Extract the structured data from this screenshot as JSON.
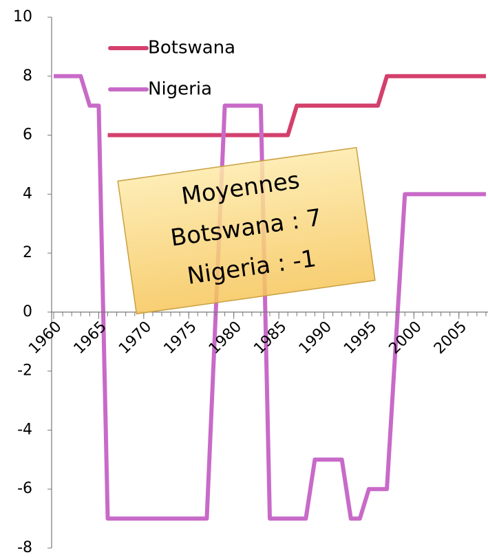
{
  "chart_data": {
    "type": "line",
    "x": [
      1960,
      1961,
      1962,
      1963,
      1964,
      1965,
      1966,
      1967,
      1968,
      1969,
      1970,
      1971,
      1972,
      1973,
      1974,
      1975,
      1976,
      1977,
      1978,
      1979,
      1980,
      1981,
      1982,
      1983,
      1984,
      1985,
      1986,
      1987,
      1988,
      1989,
      1990,
      1991,
      1992,
      1993,
      1994,
      1995,
      1996,
      1997,
      1998,
      1999,
      2000,
      2001,
      2002,
      2003,
      2004,
      2005,
      2006,
      2007,
      2008
    ],
    "series": [
      {
        "name": "Botswana",
        "color": "#d4406c",
        "values": [
          null,
          null,
          null,
          null,
          null,
          null,
          6,
          6,
          6,
          6,
          6,
          6,
          6,
          6,
          6,
          6,
          6,
          6,
          6,
          6,
          6,
          6,
          6,
          6,
          6,
          6,
          6,
          7,
          7,
          7,
          7,
          7,
          7,
          7,
          7,
          7,
          7,
          8,
          8,
          8,
          8,
          8,
          8,
          8,
          8,
          8,
          8,
          8,
          8
        ]
      },
      {
        "name": "Nigeria",
        "color": "#c86ac8",
        "values": [
          8,
          8,
          8,
          8,
          7,
          7,
          -7,
          -7,
          -7,
          -7,
          -7,
          -7,
          -7,
          -7,
          -7,
          -7,
          -7,
          -7,
          0,
          7,
          7,
          7,
          7,
          7,
          -7,
          -7,
          -7,
          -7,
          -7,
          -5,
          -5,
          -5,
          -5,
          -7,
          -7,
          -6,
          -6,
          -6,
          -1,
          4,
          4,
          4,
          4,
          4,
          4,
          4,
          4,
          4,
          4
        ]
      }
    ],
    "xlim": [
      1960,
      2008
    ],
    "xticks": [
      1960,
      1965,
      1970,
      1975,
      1980,
      1985,
      1990,
      1995,
      2000,
      2005
    ],
    "ylim": [
      -8,
      10
    ],
    "yticks": [
      -8,
      -6,
      -4,
      -2,
      0,
      2,
      4,
      6,
      8,
      10
    ],
    "grid": true,
    "legend": "top-left",
    "annotation": [
      "Moyennes",
      "Botswana : 7",
      "Nigeria : -1"
    ]
  }
}
